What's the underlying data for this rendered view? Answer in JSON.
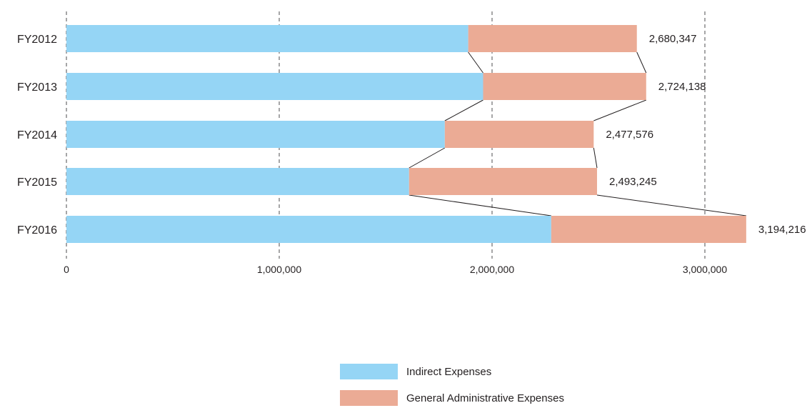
{
  "chart_data": {
    "type": "bar",
    "orientation": "horizontal",
    "stacked": true,
    "categories": [
      "FY2012",
      "FY2013",
      "FY2014",
      "FY2015",
      "FY2016"
    ],
    "series": [
      {
        "name": "Indirect Expenses",
        "color": "#95d5f5",
        "values": [
          1888000,
          1958000,
          1778000,
          1610000,
          2278000
        ]
      },
      {
        "name": "General Administrative Expenses",
        "color": "#ebab95",
        "values": [
          792347,
          766138,
          699576,
          883245,
          916216
        ]
      }
    ],
    "totals": [
      2680347,
      2724138,
      2477576,
      2493245,
      3194216
    ],
    "total_labels": [
      "2,680,347",
      "2,724,138",
      "2,477,576",
      "2,493,245",
      "3,194,216"
    ],
    "xlim": [
      0,
      3200000
    ],
    "xticks": [
      0,
      1000000,
      2000000,
      3000000
    ],
    "xtick_labels": [
      "0",
      "1,000,000",
      "2,000,000",
      "3,000,000"
    ],
    "grid": "vertical dashed",
    "connector_lines": true,
    "legend_position": "bottom-center"
  }
}
